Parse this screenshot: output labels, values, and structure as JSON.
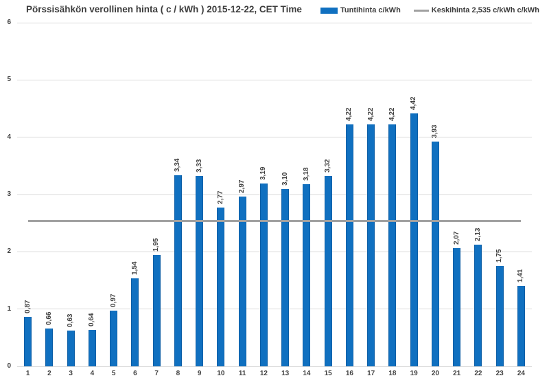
{
  "title": "Pörssisähkön verollinen hinta ( c / kWh ) 2015-12-22, CET Time",
  "legend": {
    "series1_label": "Tuntihinta c/kWh",
    "series2_label": "Keskihinta 2,535 c/kWh c/kWh"
  },
  "colors": {
    "bar_fill": "#1070C0",
    "bar_border": "#0C5EA6",
    "average_line": "#A1A1A1",
    "gridline": "#DADADA",
    "text": "#404040"
  },
  "chart_data": {
    "type": "bar",
    "title": "Pörssisähkön verollinen hinta ( c / kWh ) 2015-12-22, CET Time",
    "categories": [
      1,
      2,
      3,
      4,
      5,
      6,
      7,
      8,
      9,
      10,
      11,
      12,
      13,
      14,
      15,
      16,
      17,
      18,
      19,
      20,
      21,
      22,
      23,
      24
    ],
    "series": [
      {
        "name": "Tuntihinta c/kWh",
        "type": "bar",
        "values": [
          0.87,
          0.66,
          0.63,
          0.64,
          0.97,
          1.54,
          1.95,
          3.34,
          3.33,
          2.77,
          2.97,
          3.19,
          3.1,
          3.18,
          3.32,
          4.22,
          4.22,
          4.22,
          4.42,
          3.93,
          2.07,
          2.13,
          1.75,
          1.41
        ]
      },
      {
        "name": "Keskihinta 2,535 c/kWh c/kWh",
        "type": "line",
        "value": 2.535
      }
    ],
    "value_labels": [
      "0,87",
      "0,66",
      "0,63",
      "0,64",
      "0,97",
      "1,54",
      "1,95",
      "3,34",
      "3,33",
      "2,77",
      "2,97",
      "3,19",
      "3,10",
      "3,18",
      "3,32",
      "4,22",
      "4,22",
      "4,22",
      "4,42",
      "3,93",
      "2,07",
      "2,13",
      "1,75",
      "1,41"
    ],
    "average_value": 2.535,
    "y_ticks": [
      0,
      1,
      2,
      3,
      4,
      5,
      6
    ],
    "ylim": [
      0,
      6
    ],
    "xlabel": "",
    "ylabel": "",
    "grid": true,
    "legend_position": "top-right",
    "decimal_separator": ","
  }
}
